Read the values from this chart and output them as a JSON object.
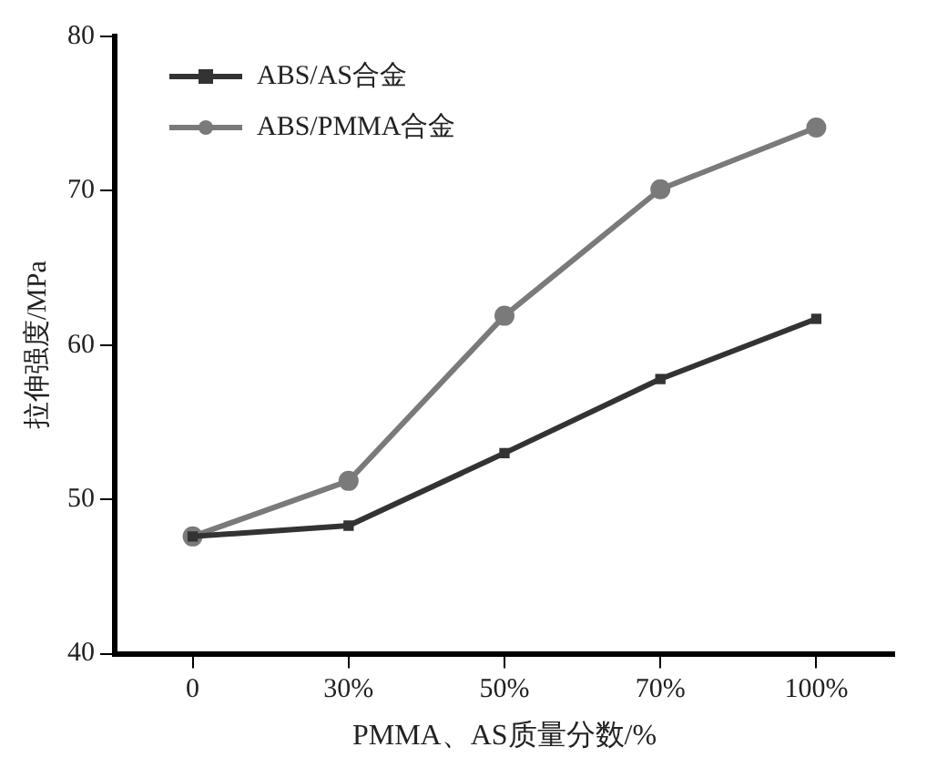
{
  "chart_data": {
    "type": "line",
    "xlabel": "PMMA、AS质量分数/%",
    "ylabel": "拉伸强度/MPa",
    "categories": [
      "0",
      "30%",
      "50%",
      "70%",
      "100%"
    ],
    "series": [
      {
        "name": "ABS/AS合金",
        "color": "#333333",
        "marker": "square",
        "values": [
          47.6,
          48.3,
          53.0,
          57.8,
          61.7
        ]
      },
      {
        "name": "ABS/PMMA合金",
        "color": "#7a7a7a",
        "marker": "circle",
        "values": [
          47.6,
          51.2,
          61.9,
          70.1,
          74.1
        ]
      }
    ],
    "ylim": [
      40,
      80
    ],
    "yticks": [
      40,
      50,
      60,
      70,
      80
    ],
    "grid": false,
    "legend": "top left",
    "line_style": "solid"
  }
}
